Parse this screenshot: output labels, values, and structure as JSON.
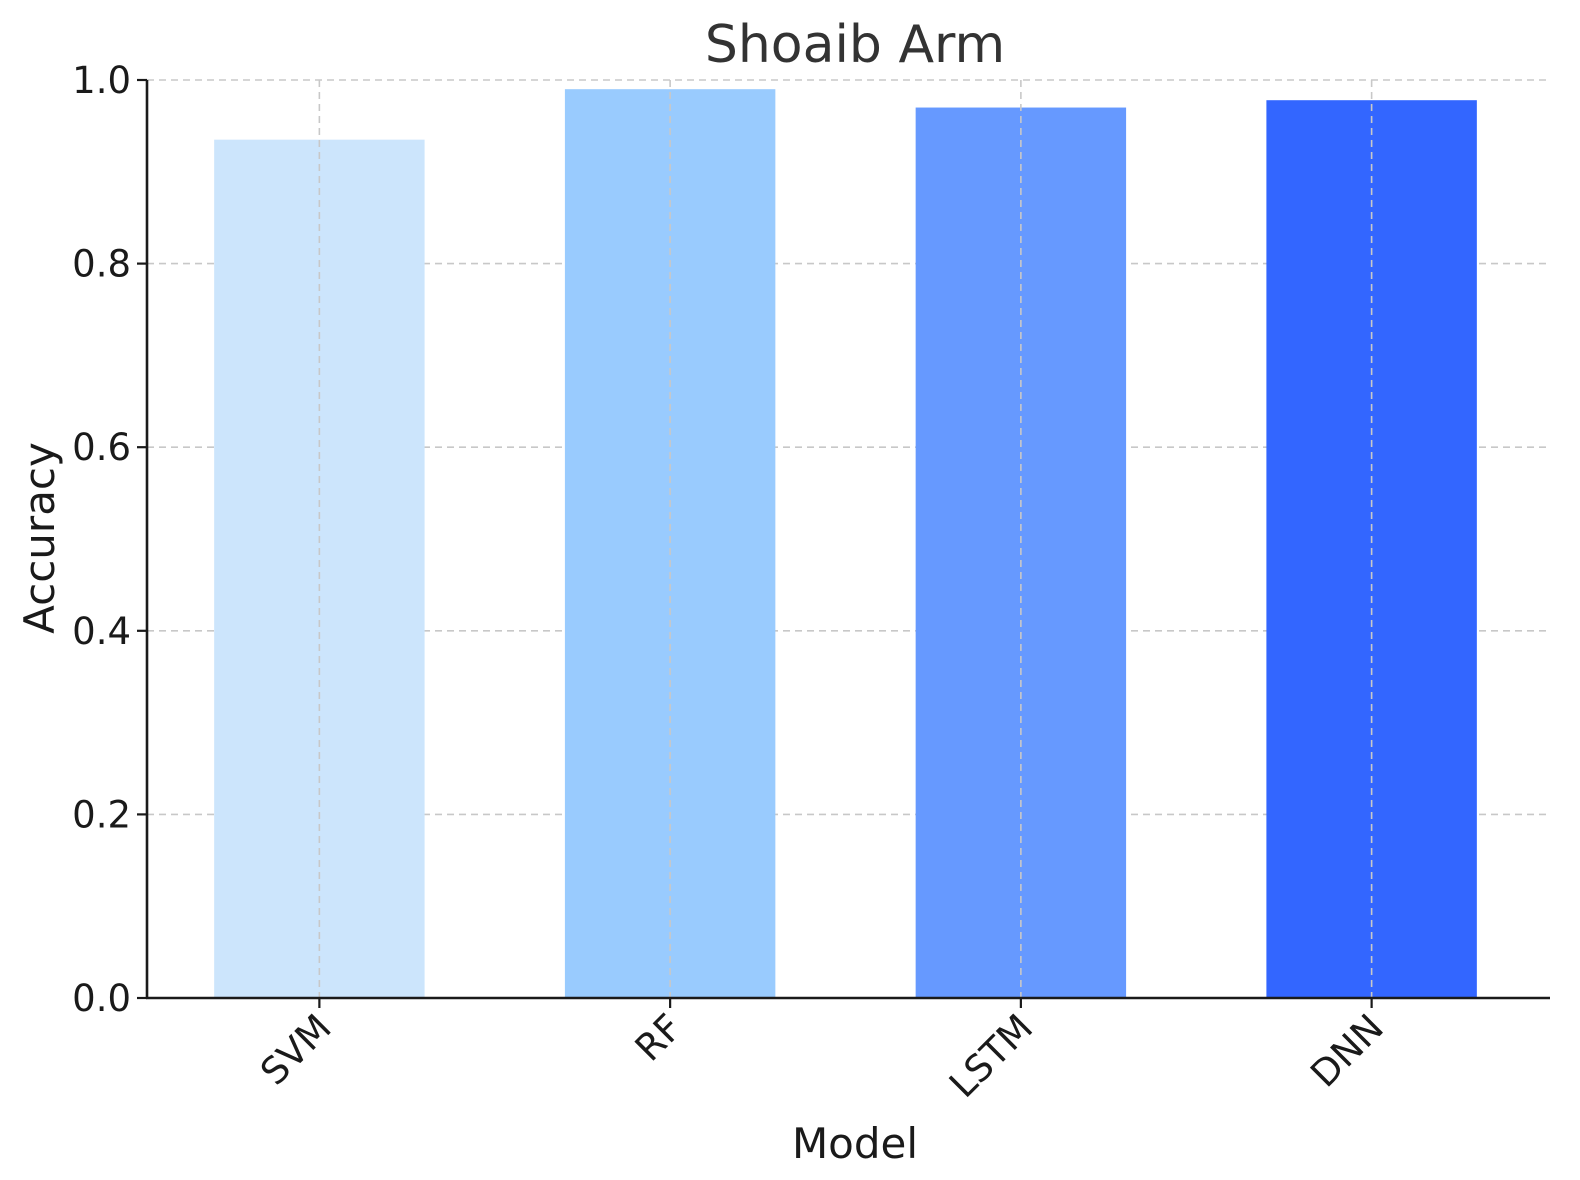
{
  "chart_data": {
    "type": "bar",
    "title": "Shoaib Arm",
    "xlabel": "Model",
    "ylabel": "Accuracy",
    "categories": [
      "SVM",
      "RF",
      "LSTM",
      "DNN"
    ],
    "values": [
      0.935,
      0.99,
      0.97,
      0.978
    ],
    "colors": [
      "#cce5fc",
      "#99cbfe",
      "#6699ff",
      "#3366ff"
    ],
    "ylim": [
      0,
      1.0
    ],
    "yticks": [
      "0.0",
      "0.2",
      "0.4",
      "0.6",
      "0.8",
      "1.0"
    ],
    "grid": true,
    "legend": false
  }
}
